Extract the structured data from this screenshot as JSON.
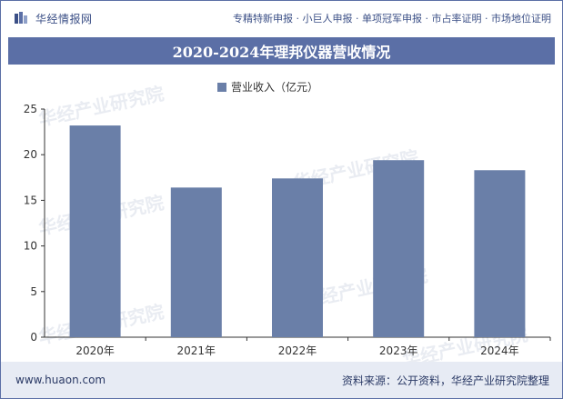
{
  "header": {
    "brand_name": "华经情报网",
    "services": "专精特新申报 · 小巨人申报 · 单项冠军申报 · 市占率证明 · 市场地位证明"
  },
  "watermark": "华经产业研究院",
  "footer": {
    "site": "www.huaon.com",
    "source": "资料来源：公开资料，华经产业研究院整理"
  },
  "colors": {
    "accent": "#5b6fa6",
    "bar": "#6a7fa8"
  },
  "chart_data": {
    "type": "bar",
    "title": "2020-2024年理邦仪器营收情况",
    "categories": [
      "2020年",
      "2021年",
      "2022年",
      "2023年",
      "2024年"
    ],
    "series": [
      {
        "name": "营业收入（亿元）",
        "values": [
          23.2,
          16.4,
          17.4,
          19.4,
          18.3
        ]
      }
    ],
    "yticks": [
      "0",
      "5",
      "10",
      "15",
      "20",
      "25"
    ],
    "ylim": [
      0,
      25
    ],
    "legend": "top-center",
    "grid": false
  }
}
